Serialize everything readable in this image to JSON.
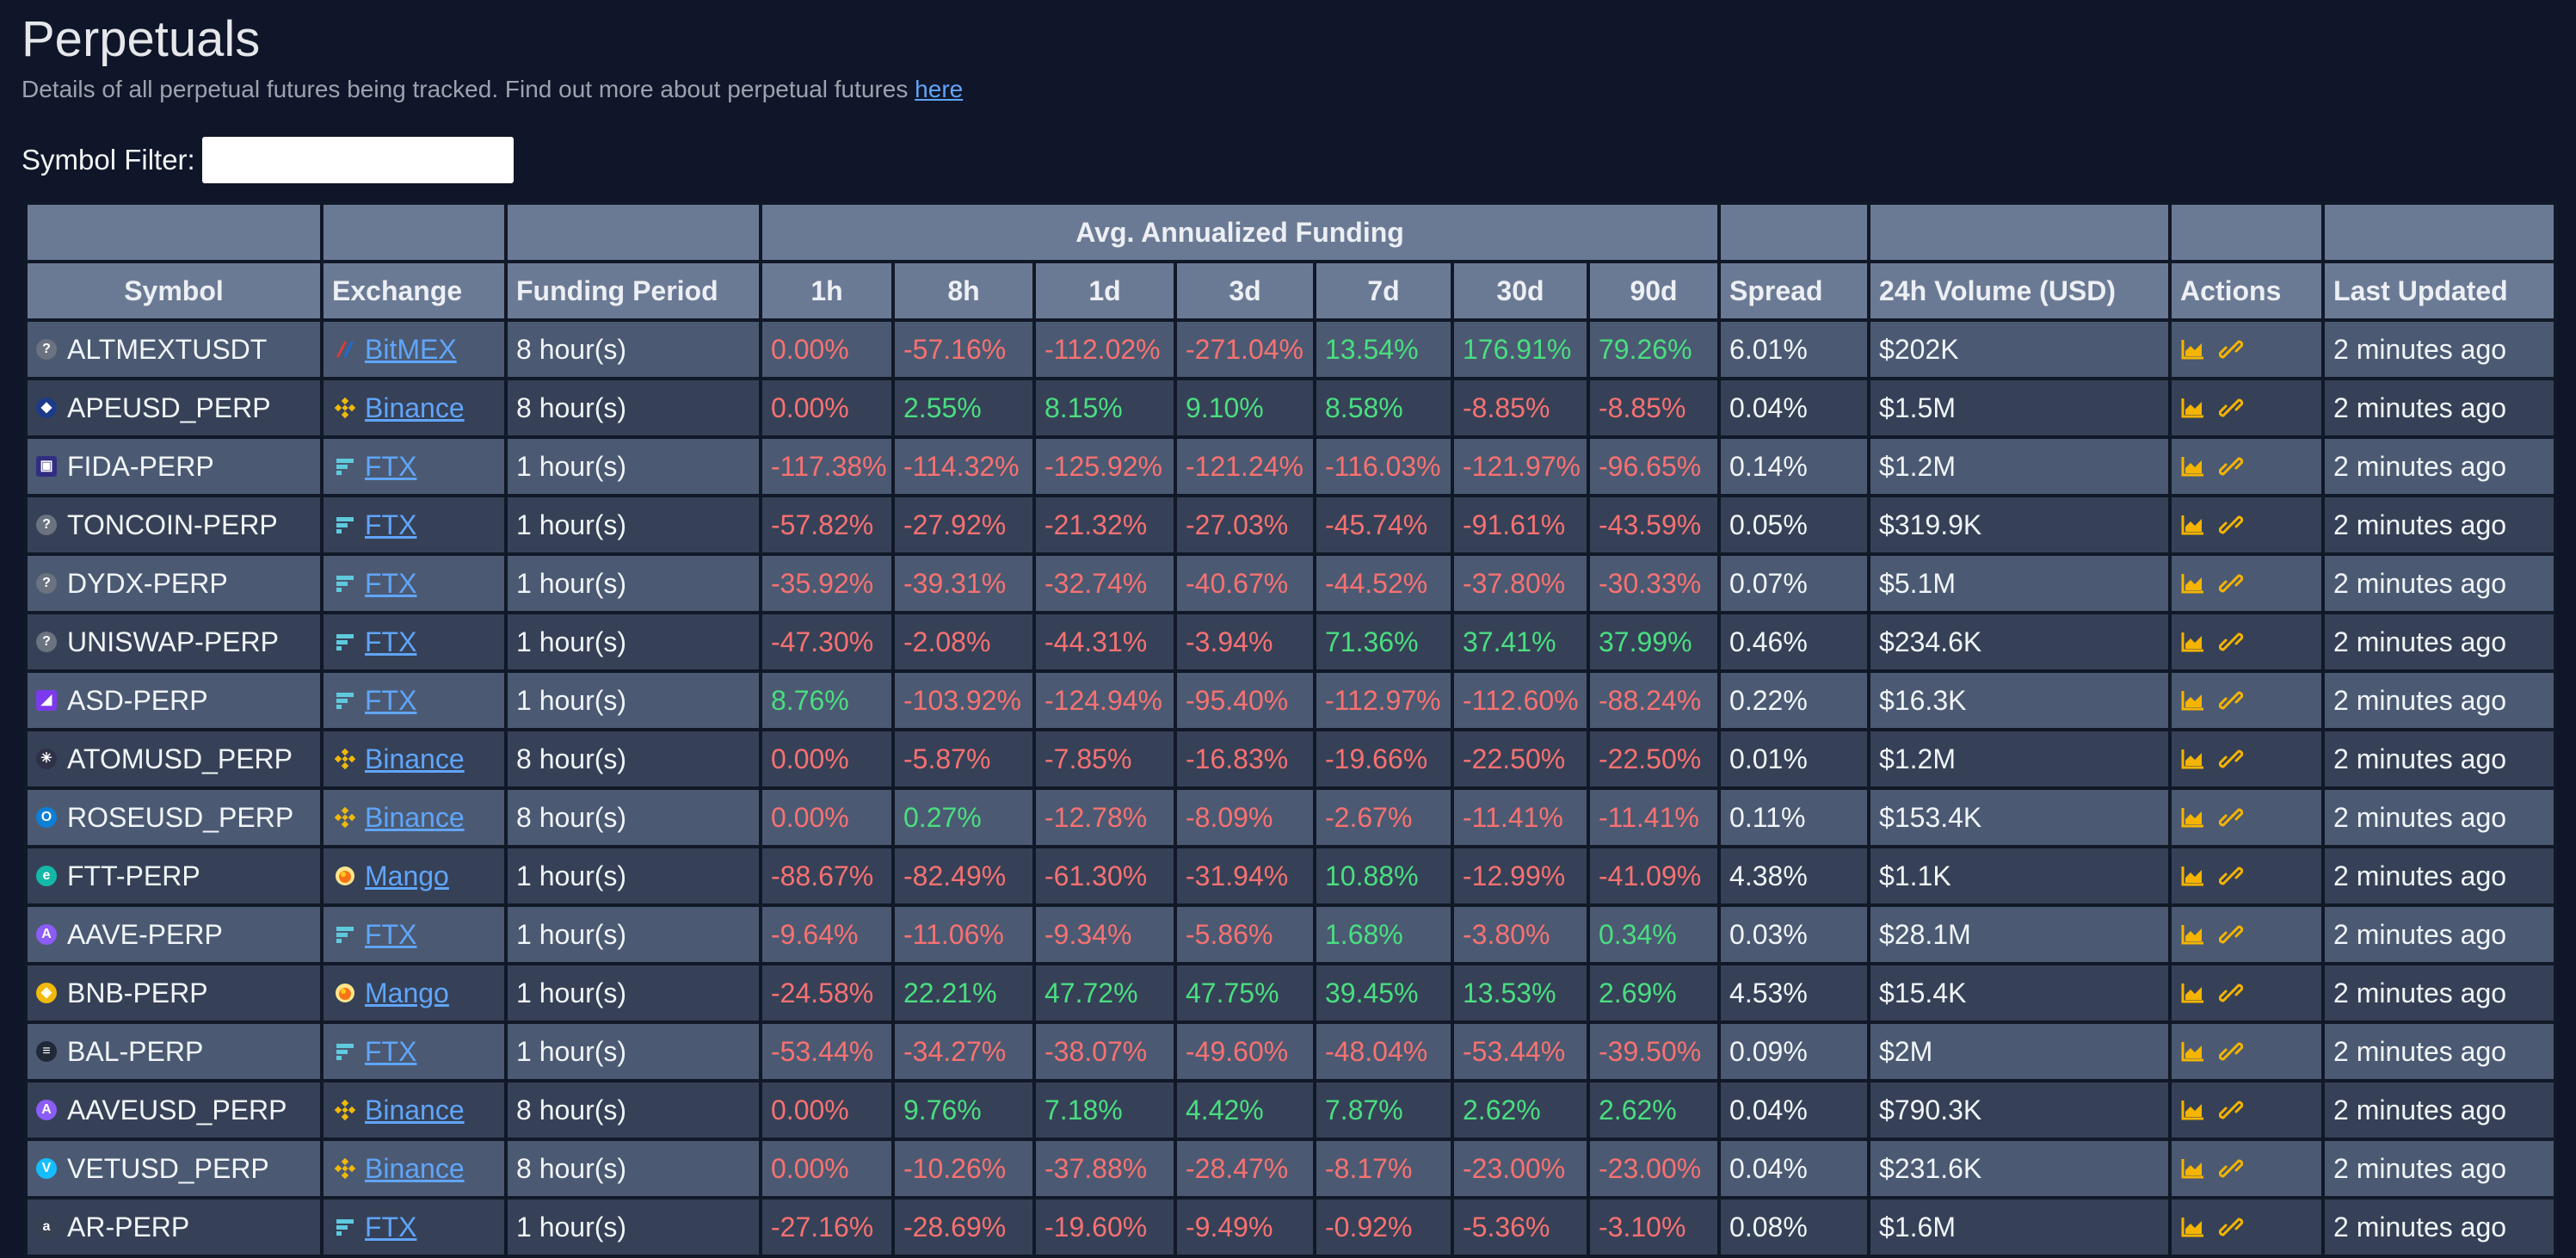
{
  "page": {
    "title": "Perpetuals",
    "subtitle": "Details of all perpetual futures being tracked. Find out more about perpetual futures ",
    "subtitle_link": "here"
  },
  "filter": {
    "label": "Symbol Filter:",
    "value": "",
    "placeholder": ""
  },
  "table": {
    "group_header": "Avg. Annualized Funding",
    "columns": [
      "Symbol",
      "Exchange",
      "Funding Period",
      "1h",
      "8h",
      "1d",
      "3d",
      "7d",
      "30d",
      "90d",
      "Spread",
      "24h Volume (USD)",
      "Actions",
      "Last Updated"
    ],
    "rows": [
      {
        "symbol": "ALTMEXTUSDT",
        "coin": "question-icon",
        "exchange": "BitMEX",
        "period": "8 hour(s)",
        "funding": [
          "0.00%",
          "-57.16%",
          "-112.02%",
          "-271.04%",
          "13.54%",
          "176.91%",
          "79.26%"
        ],
        "spread": "6.01%",
        "volume": "$202K",
        "updated": "2 minutes ago"
      },
      {
        "symbol": "APEUSD_PERP",
        "coin": "ape-icon",
        "exchange": "Binance",
        "period": "8 hour(s)",
        "funding": [
          "0.00%",
          "2.55%",
          "8.15%",
          "9.10%",
          "8.58%",
          "-8.85%",
          "-8.85%"
        ],
        "spread": "0.04%",
        "volume": "$1.5M",
        "updated": "2 minutes ago"
      },
      {
        "symbol": "FIDA-PERP",
        "coin": "fida-icon",
        "exchange": "FTX",
        "period": "1 hour(s)",
        "funding": [
          "-117.38%",
          "-114.32%",
          "-125.92%",
          "-121.24%",
          "-116.03%",
          "-121.97%",
          "-96.65%"
        ],
        "spread": "0.14%",
        "volume": "$1.2M",
        "updated": "2 minutes ago"
      },
      {
        "symbol": "TONCOIN-PERP",
        "coin": "question-icon",
        "exchange": "FTX",
        "period": "1 hour(s)",
        "funding": [
          "-57.82%",
          "-27.92%",
          "-21.32%",
          "-27.03%",
          "-45.74%",
          "-91.61%",
          "-43.59%"
        ],
        "spread": "0.05%",
        "volume": "$319.9K",
        "updated": "2 minutes ago"
      },
      {
        "symbol": "DYDX-PERP",
        "coin": "question-icon",
        "exchange": "FTX",
        "period": "1 hour(s)",
        "funding": [
          "-35.92%",
          "-39.31%",
          "-32.74%",
          "-40.67%",
          "-44.52%",
          "-37.80%",
          "-30.33%"
        ],
        "spread": "0.07%",
        "volume": "$5.1M",
        "updated": "2 minutes ago"
      },
      {
        "symbol": "UNISWAP-PERP",
        "coin": "question-icon",
        "exchange": "FTX",
        "period": "1 hour(s)",
        "funding": [
          "-47.30%",
          "-2.08%",
          "-44.31%",
          "-3.94%",
          "71.36%",
          "37.41%",
          "37.99%"
        ],
        "spread": "0.46%",
        "volume": "$234.6K",
        "updated": "2 minutes ago"
      },
      {
        "symbol": "ASD-PERP",
        "coin": "asd-icon",
        "exchange": "FTX",
        "period": "1 hour(s)",
        "funding": [
          "8.76%",
          "-103.92%",
          "-124.94%",
          "-95.40%",
          "-112.97%",
          "-112.60%",
          "-88.24%"
        ],
        "spread": "0.22%",
        "volume": "$16.3K",
        "updated": "2 minutes ago"
      },
      {
        "symbol": "ATOMUSD_PERP",
        "coin": "atom-icon",
        "exchange": "Binance",
        "period": "8 hour(s)",
        "funding": [
          "0.00%",
          "-5.87%",
          "-7.85%",
          "-16.83%",
          "-19.66%",
          "-22.50%",
          "-22.50%"
        ],
        "spread": "0.01%",
        "volume": "$1.2M",
        "updated": "2 minutes ago"
      },
      {
        "symbol": "ROSEUSD_PERP",
        "coin": "rose-icon",
        "exchange": "Binance",
        "period": "8 hour(s)",
        "funding": [
          "0.00%",
          "0.27%",
          "-12.78%",
          "-8.09%",
          "-2.67%",
          "-11.41%",
          "-11.41%"
        ],
        "spread": "0.11%",
        "volume": "$153.4K",
        "updated": "2 minutes ago"
      },
      {
        "symbol": "FTT-PERP",
        "coin": "ftt-icon",
        "exchange": "Mango",
        "period": "1 hour(s)",
        "funding": [
          "-88.67%",
          "-82.49%",
          "-61.30%",
          "-31.94%",
          "10.88%",
          "-12.99%",
          "-41.09%"
        ],
        "spread": "4.38%",
        "volume": "$1.1K",
        "updated": "2 minutes ago"
      },
      {
        "symbol": "AAVE-PERP",
        "coin": "aave-icon",
        "exchange": "FTX",
        "period": "1 hour(s)",
        "funding": [
          "-9.64%",
          "-11.06%",
          "-9.34%",
          "-5.86%",
          "1.68%",
          "-3.80%",
          "0.34%"
        ],
        "spread": "0.03%",
        "volume": "$28.1M",
        "updated": "2 minutes ago"
      },
      {
        "symbol": "BNB-PERP",
        "coin": "bnb-icon",
        "exchange": "Mango",
        "period": "1 hour(s)",
        "funding": [
          "-24.58%",
          "22.21%",
          "47.72%",
          "47.75%",
          "39.45%",
          "13.53%",
          "2.69%"
        ],
        "spread": "4.53%",
        "volume": "$15.4K",
        "updated": "2 minutes ago"
      },
      {
        "symbol": "BAL-PERP",
        "coin": "bal-icon",
        "exchange": "FTX",
        "period": "1 hour(s)",
        "funding": [
          "-53.44%",
          "-34.27%",
          "-38.07%",
          "-49.60%",
          "-48.04%",
          "-53.44%",
          "-39.50%"
        ],
        "spread": "0.09%",
        "volume": "$2M",
        "updated": "2 minutes ago"
      },
      {
        "symbol": "AAVEUSD_PERP",
        "coin": "aave-icon",
        "exchange": "Binance",
        "period": "8 hour(s)",
        "funding": [
          "0.00%",
          "9.76%",
          "7.18%",
          "4.42%",
          "7.87%",
          "2.62%",
          "2.62%"
        ],
        "spread": "0.04%",
        "volume": "$790.3K",
        "updated": "2 minutes ago"
      },
      {
        "symbol": "VETUSD_PERP",
        "coin": "vet-icon",
        "exchange": "Binance",
        "period": "8 hour(s)",
        "funding": [
          "0.00%",
          "-10.26%",
          "-37.88%",
          "-28.47%",
          "-8.17%",
          "-23.00%",
          "-23.00%"
        ],
        "spread": "0.04%",
        "volume": "$231.6K",
        "updated": "2 minutes ago"
      },
      {
        "symbol": "AR-PERP",
        "coin": "ar-icon",
        "exchange": "FTX",
        "period": "1 hour(s)",
        "funding": [
          "-27.16%",
          "-28.69%",
          "-19.60%",
          "-9.49%",
          "-0.92%",
          "-5.36%",
          "-3.10%"
        ],
        "spread": "0.08%",
        "volume": "$1.6M",
        "updated": "2 minutes ago"
      }
    ]
  },
  "colors": {
    "negative": "#f87171",
    "positive": "#4ade80",
    "link": "#60a5fa",
    "action_icon": "#f5b400"
  },
  "action_icons": [
    "chart-icon",
    "link-icon"
  ]
}
